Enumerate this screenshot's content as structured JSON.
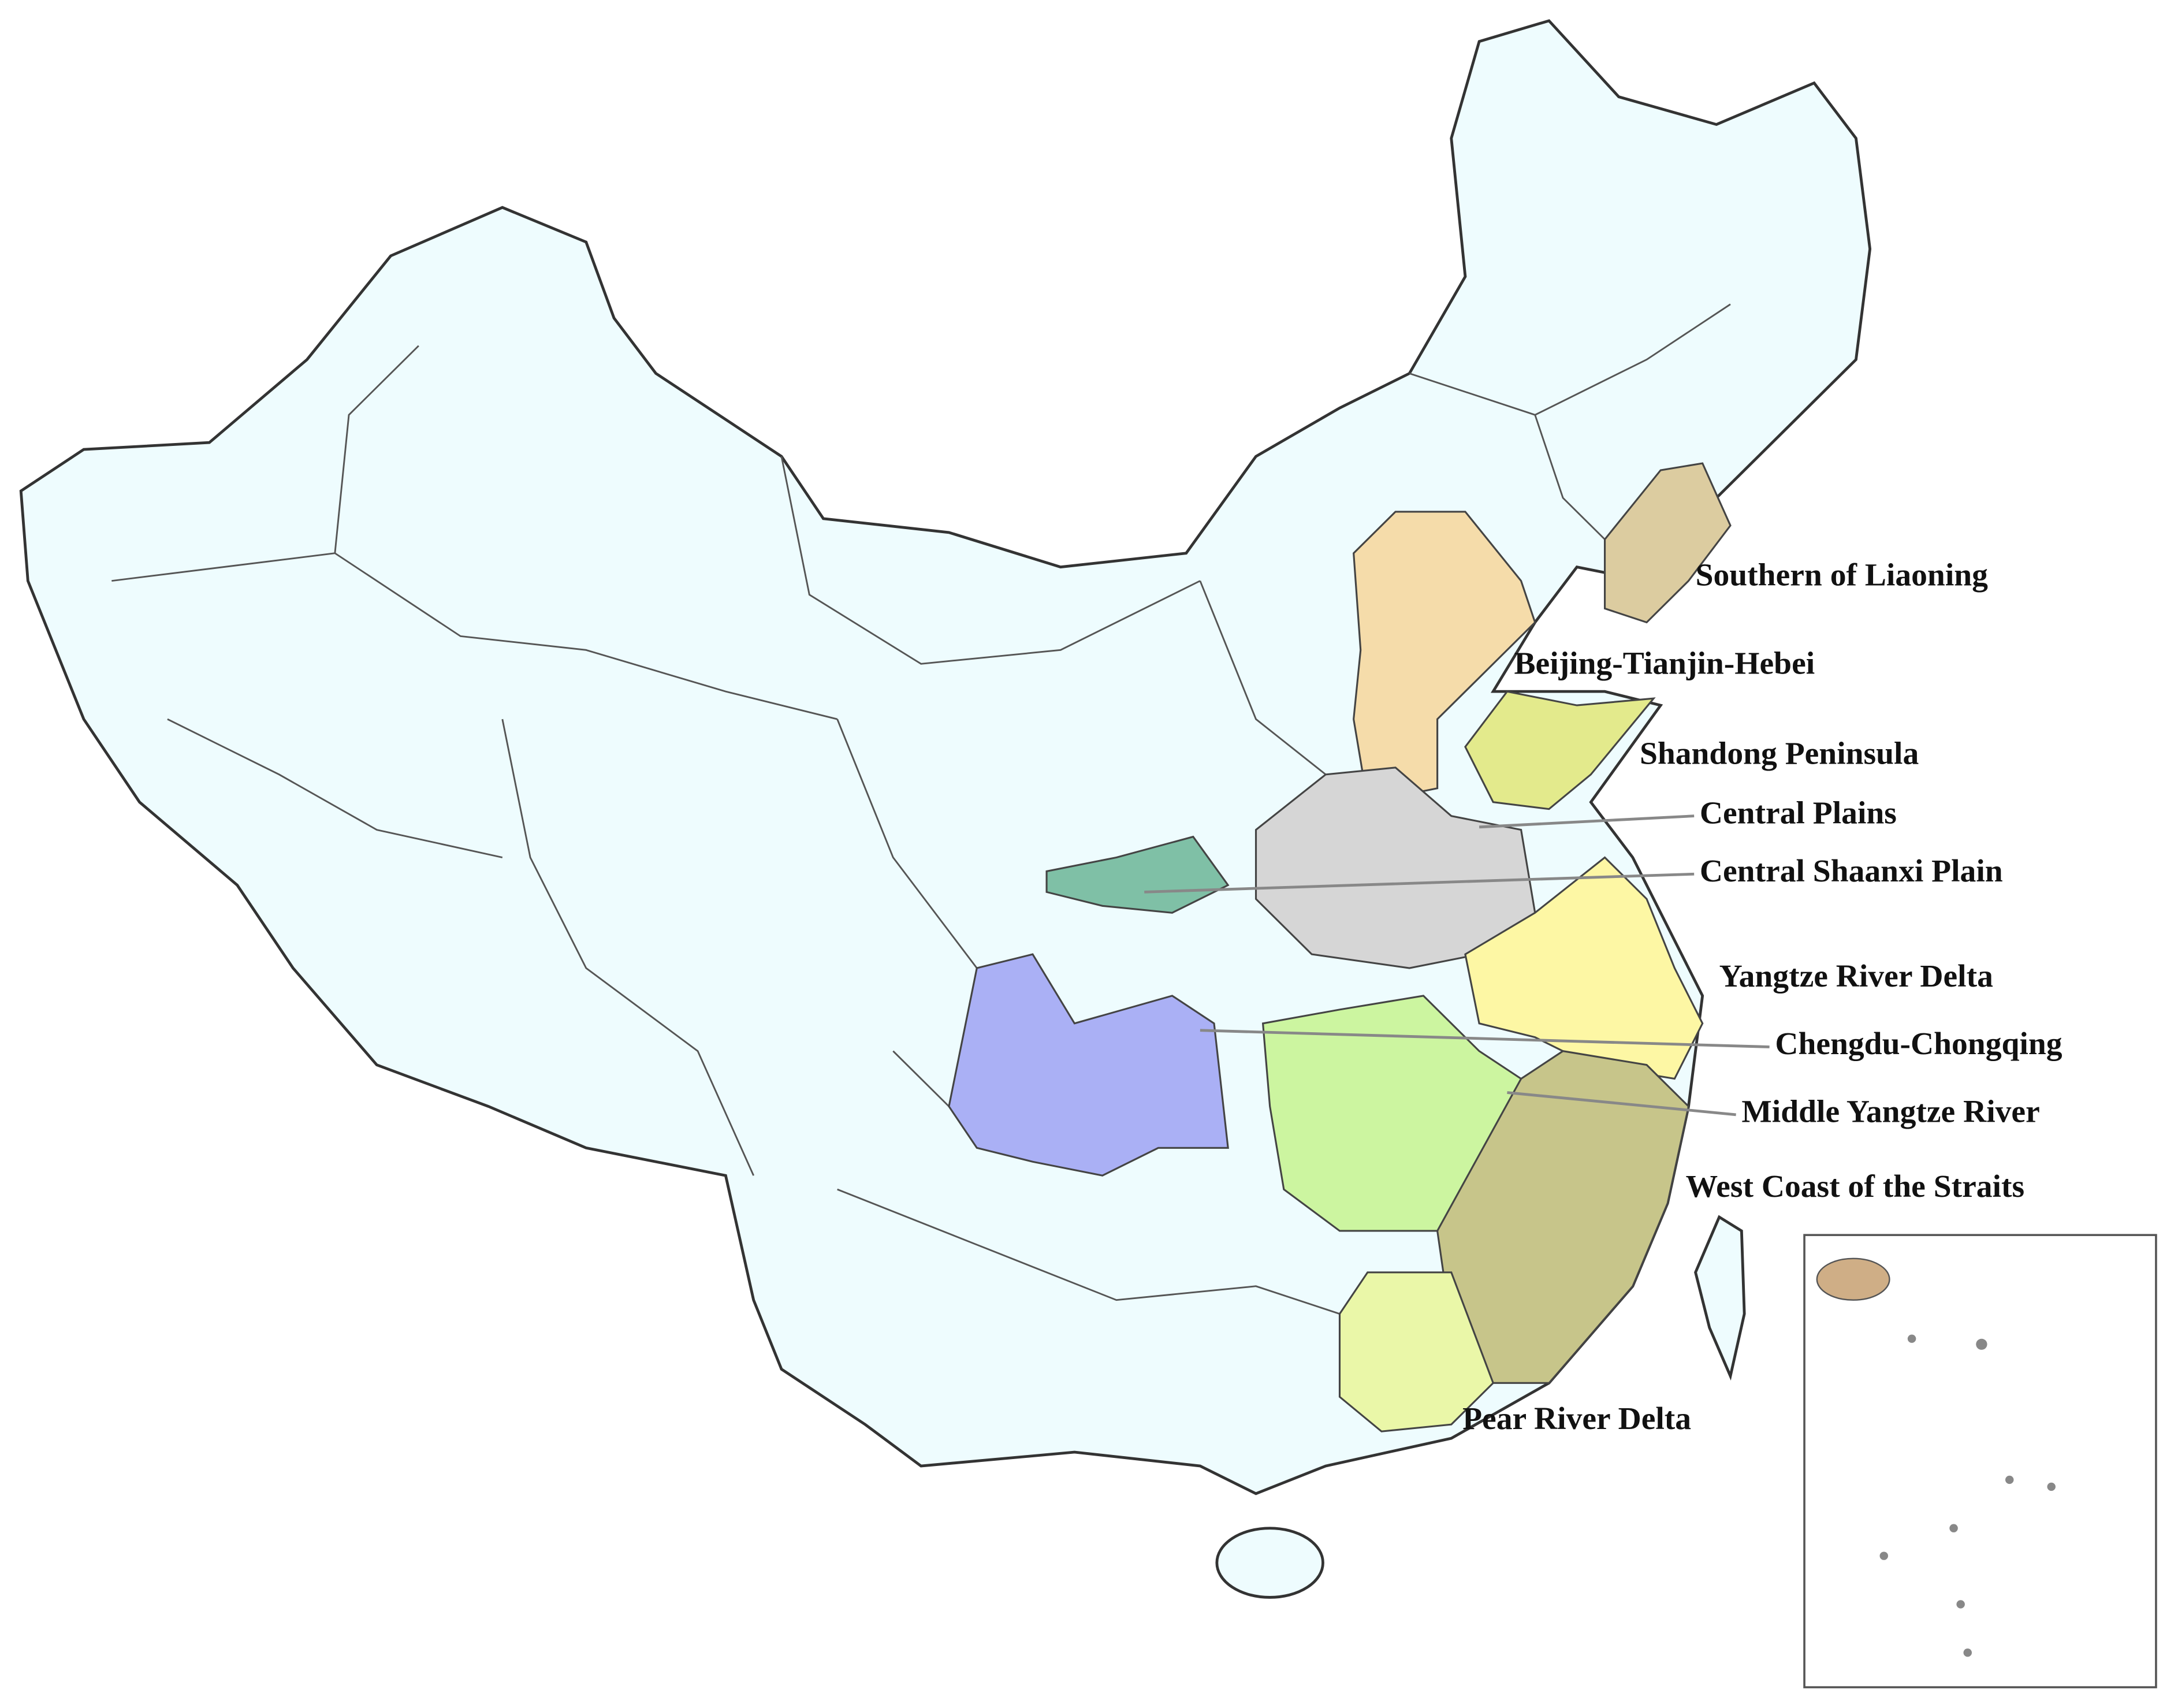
{
  "map": {
    "regions": [
      "Southern of Liaoning",
      "Beijing-Tianjin-Hebei",
      "Shandong Peninsula",
      "Central Plains",
      "Central Shaanxi Plain",
      "Yangtze River Delta",
      "Chengdu-Chongqing",
      "Middle Yangtze River",
      "West Coast of the Straits",
      "Pear River Delta"
    ]
  }
}
